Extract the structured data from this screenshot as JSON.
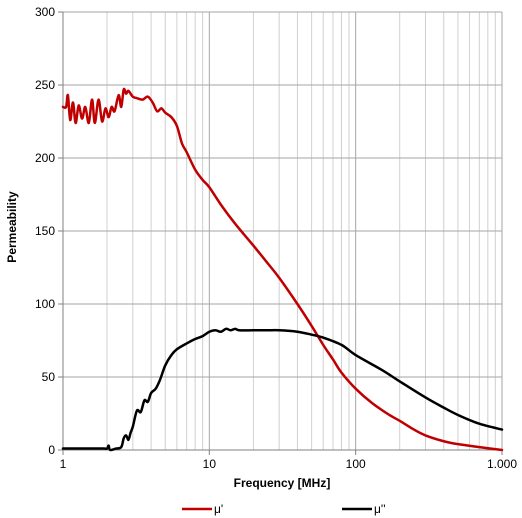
{
  "chart_data": {
    "type": "line",
    "title": "",
    "xlabel": "Frequency [MHz]",
    "ylabel": "Permeability",
    "xscale": "log",
    "xlim": [
      1,
      1000
    ],
    "ylim": [
      0,
      300
    ],
    "grid": true,
    "legend_position": "bottom",
    "x_tick_labels": [
      "1",
      "10",
      "100",
      "1.000"
    ],
    "y_tick_labels": [
      "0",
      "50",
      "100",
      "150",
      "200",
      "250",
      "300"
    ],
    "series": [
      {
        "name": "μ'",
        "color": "#c00000",
        "points": [
          [
            1.0,
            235
          ],
          [
            1.05,
            235
          ],
          [
            1.08,
            243
          ],
          [
            1.12,
            226
          ],
          [
            1.17,
            238
          ],
          [
            1.22,
            224
          ],
          [
            1.28,
            236
          ],
          [
            1.35,
            227
          ],
          [
            1.42,
            235
          ],
          [
            1.5,
            224
          ],
          [
            1.58,
            240
          ],
          [
            1.65,
            224
          ],
          [
            1.75,
            240
          ],
          [
            1.85,
            225
          ],
          [
            1.95,
            234
          ],
          [
            2.05,
            228
          ],
          [
            2.15,
            235
          ],
          [
            2.25,
            232
          ],
          [
            2.4,
            243
          ],
          [
            2.5,
            235
          ],
          [
            2.6,
            247
          ],
          [
            2.7,
            244
          ],
          [
            2.8,
            246
          ],
          [
            3.0,
            242
          ],
          [
            3.2,
            241
          ],
          [
            3.5,
            240
          ],
          [
            3.8,
            242
          ],
          [
            4.1,
            238
          ],
          [
            4.4,
            232
          ],
          [
            4.7,
            234
          ],
          [
            5.0,
            231
          ],
          [
            5.5,
            228
          ],
          [
            6.0,
            222
          ],
          [
            6.5,
            210
          ],
          [
            7.0,
            204
          ],
          [
            8.0,
            192
          ],
          [
            9.0,
            185
          ],
          [
            10.0,
            180
          ],
          [
            12.0,
            168
          ],
          [
            15.0,
            155
          ],
          [
            20.0,
            140
          ],
          [
            25.0,
            128
          ],
          [
            30.0,
            118
          ],
          [
            40.0,
            100
          ],
          [
            50.0,
            85
          ],
          [
            60.0,
            72
          ],
          [
            70.0,
            62
          ],
          [
            80.0,
            53
          ],
          [
            100.0,
            42
          ],
          [
            130.0,
            32
          ],
          [
            170.0,
            24
          ],
          [
            200.0,
            20
          ],
          [
            250.0,
            14
          ],
          [
            300.0,
            10
          ],
          [
            400.0,
            6
          ],
          [
            500.0,
            4
          ],
          [
            700.0,
            2
          ],
          [
            1000.0,
            0
          ]
        ]
      },
      {
        "name": "μ''",
        "color": "#000000",
        "points": [
          [
            1.0,
            1
          ],
          [
            1.5,
            1
          ],
          [
            1.9,
            1
          ],
          [
            2.0,
            1
          ],
          [
            2.05,
            3
          ],
          [
            2.1,
            0
          ],
          [
            2.3,
            1
          ],
          [
            2.5,
            2
          ],
          [
            2.6,
            8
          ],
          [
            2.7,
            10
          ],
          [
            2.8,
            7
          ],
          [
            2.9,
            12
          ],
          [
            3.0,
            16
          ],
          [
            3.2,
            27
          ],
          [
            3.4,
            26
          ],
          [
            3.6,
            34
          ],
          [
            3.8,
            33
          ],
          [
            4.0,
            39
          ],
          [
            4.3,
            42
          ],
          [
            4.6,
            48
          ],
          [
            5.0,
            58
          ],
          [
            5.5,
            65
          ],
          [
            6.0,
            69
          ],
          [
            7.0,
            73
          ],
          [
            8.0,
            76
          ],
          [
            9.0,
            78
          ],
          [
            10.0,
            81
          ],
          [
            11.0,
            82
          ],
          [
            12.0,
            81
          ],
          [
            13.0,
            83
          ],
          [
            14.0,
            82
          ],
          [
            15.0,
            83
          ],
          [
            16.0,
            82
          ],
          [
            20.0,
            82
          ],
          [
            25.0,
            82
          ],
          [
            30.0,
            82
          ],
          [
            40.0,
            81
          ],
          [
            50.0,
            79
          ],
          [
            60.0,
            77
          ],
          [
            80.0,
            72
          ],
          [
            100.0,
            65
          ],
          [
            150.0,
            55
          ],
          [
            200.0,
            47
          ],
          [
            300.0,
            36
          ],
          [
            400.0,
            29
          ],
          [
            500.0,
            24
          ],
          [
            700.0,
            18
          ],
          [
            1000.0,
            14
          ]
        ]
      }
    ]
  }
}
